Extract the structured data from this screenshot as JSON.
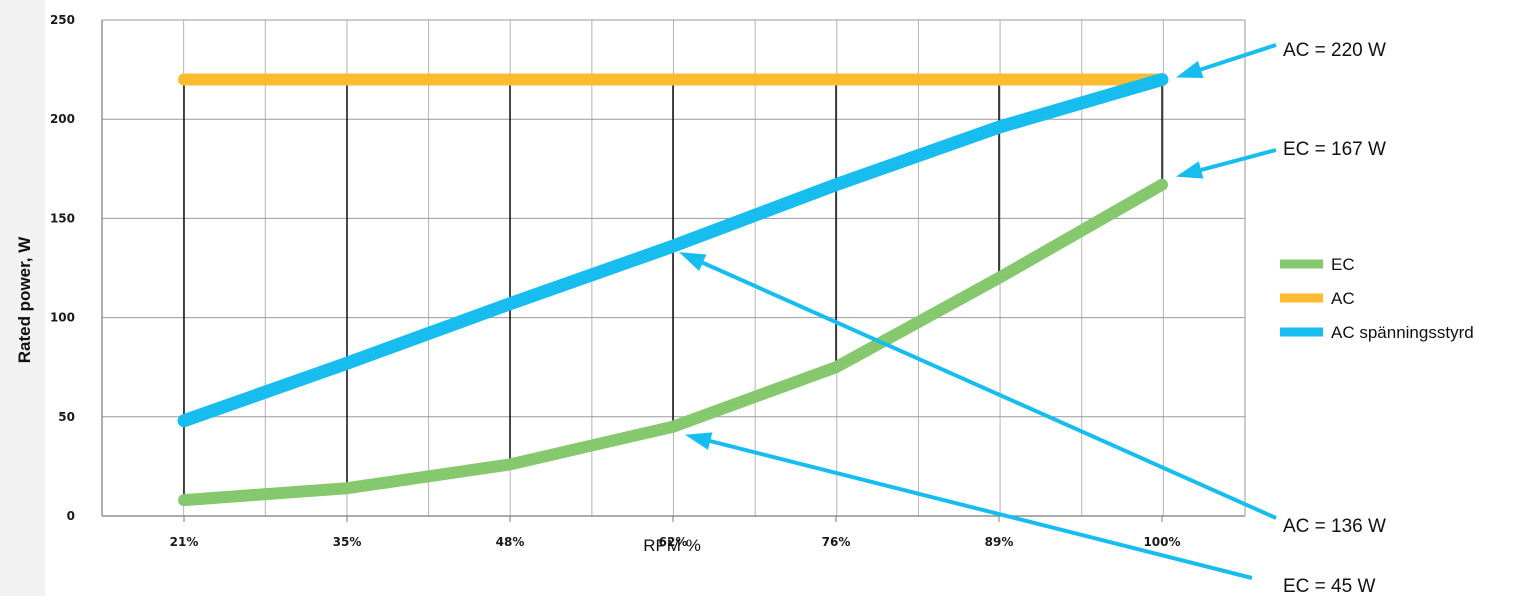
{
  "chart_data": {
    "type": "line",
    "categories": [
      "21%",
      "35%",
      "48%",
      "62%",
      "76%",
      "89%",
      "100%"
    ],
    "xlabel": "RPM %",
    "ylabel": "Rated power, W",
    "ylim": [
      0,
      250
    ],
    "yticks": [
      0,
      50,
      100,
      150,
      200,
      250
    ],
    "grid": true,
    "legend_position": "right",
    "series": [
      {
        "name": "EC",
        "color": "#86c86d",
        "values": [
          8,
          14,
          26,
          45,
          75,
          120,
          167
        ]
      },
      {
        "name": "AC",
        "color": "#fdbb30",
        "values": [
          220,
          220,
          220,
          220,
          220,
          220,
          220
        ]
      },
      {
        "name": "AC spänningsstyrd",
        "color": "#18bdf0",
        "values": [
          48,
          77,
          107,
          136,
          167,
          196,
          220
        ]
      }
    ],
    "annotations": [
      {
        "text": "AC = 220 W",
        "series": 1,
        "point": 6
      },
      {
        "text": "EC = 167 W",
        "series": 0,
        "point": 6
      },
      {
        "text": "AC = 136 W",
        "series": 2,
        "point": 3
      },
      {
        "text": "EC = 45 W",
        "series": 0,
        "point": 3
      }
    ]
  }
}
